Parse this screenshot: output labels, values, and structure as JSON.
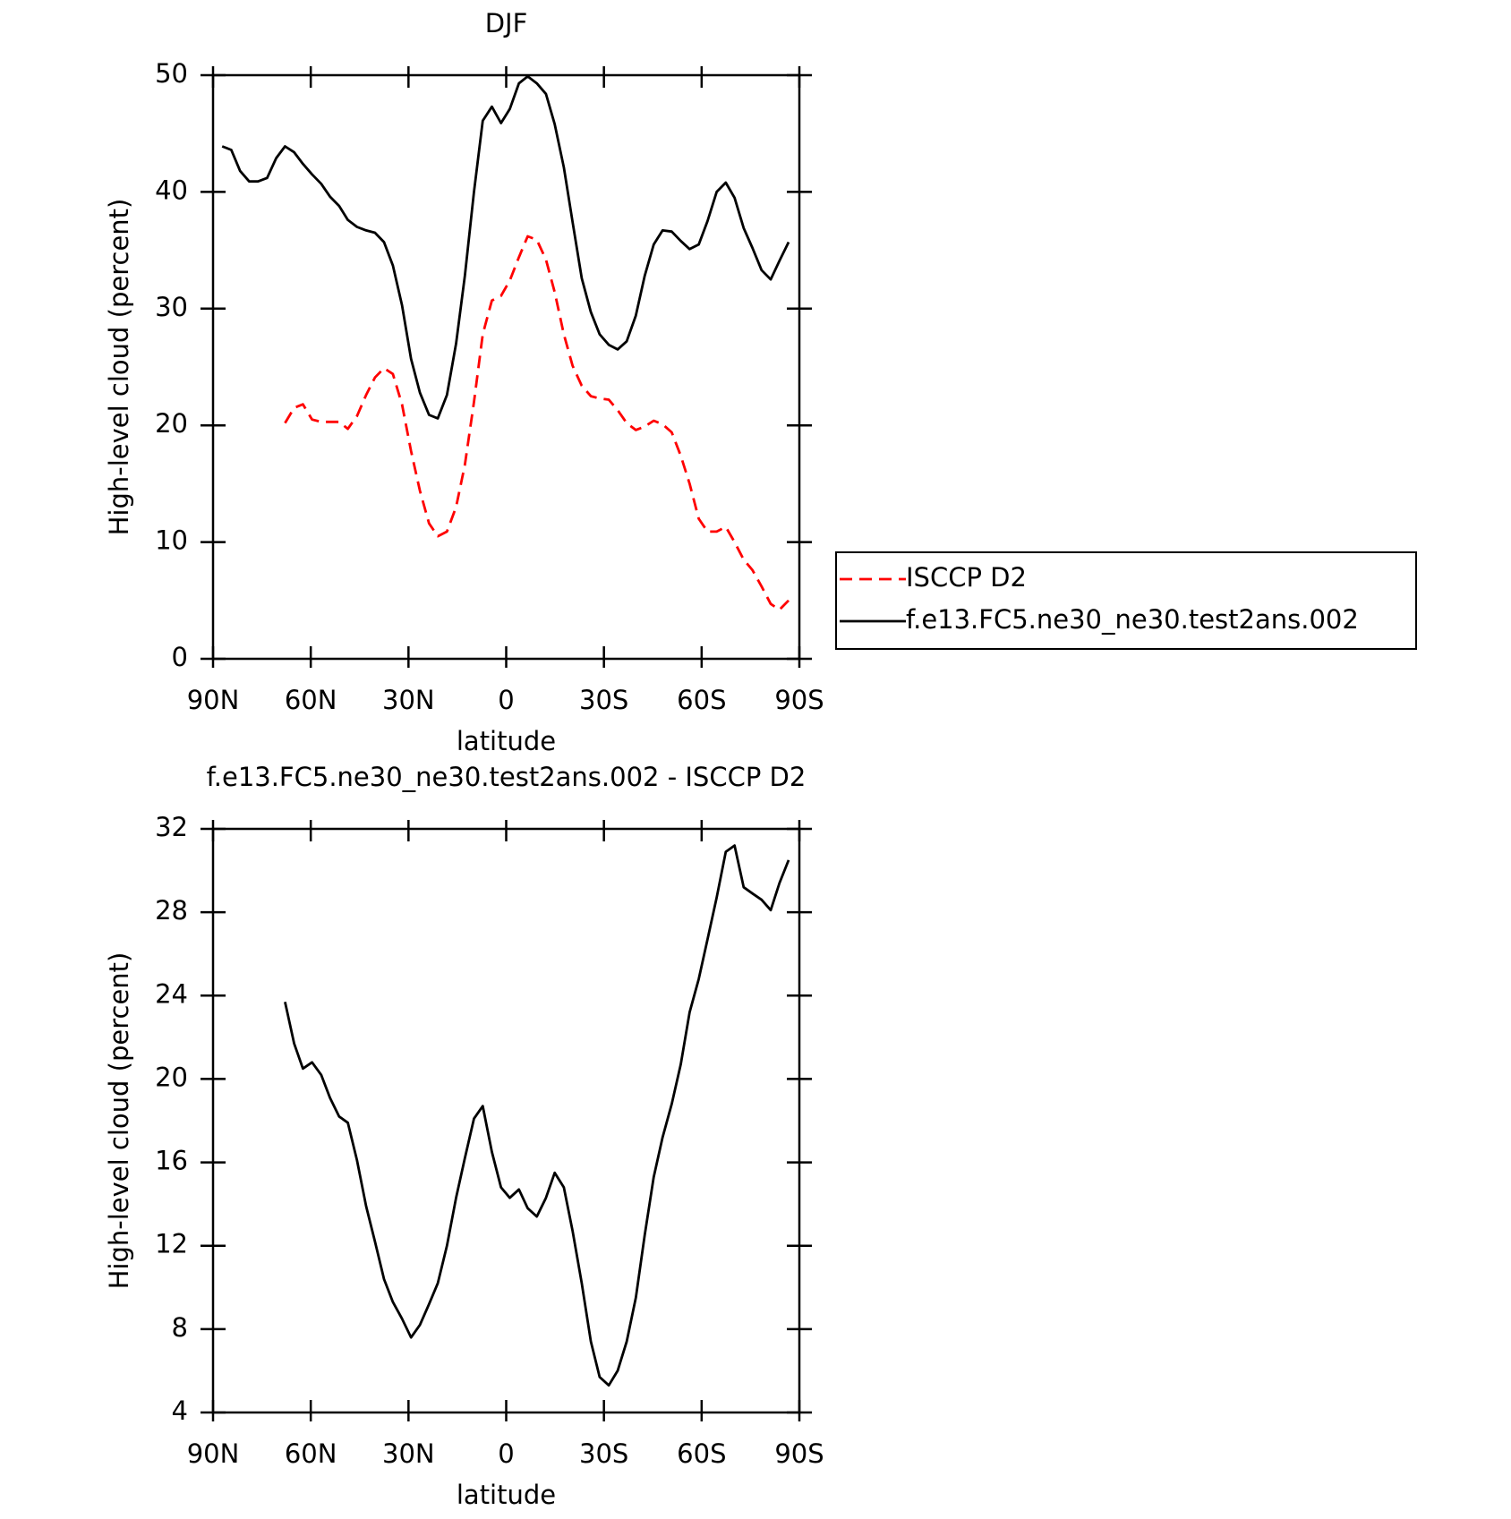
{
  "chart_data": [
    {
      "type": "line",
      "title": "DJF",
      "xlabel": "latitude",
      "ylabel": "High-level cloud (percent)",
      "xlim": [
        90,
        -90
      ],
      "ylim": [
        0,
        50
      ],
      "xticks": [
        {
          "value": 90,
          "label": "90N"
        },
        {
          "value": 60,
          "label": "60N"
        },
        {
          "value": 30,
          "label": "30N"
        },
        0,
        {
          "value": -30,
          "label": "30S"
        },
        {
          "value": -60,
          "label": "60S"
        },
        {
          "value": -90,
          "label": "90S"
        }
      ],
      "yticks": [
        0,
        10,
        20,
        30,
        40,
        50
      ],
      "legend": "right",
      "x": [
        87.2,
        84.4,
        81.7,
        78.9,
        76.2,
        73.4,
        70.6,
        67.9,
        65.1,
        62.4,
        59.6,
        56.8,
        54.1,
        51.3,
        48.6,
        45.8,
        43.0,
        40.3,
        37.5,
        34.8,
        32.0,
        29.2,
        26.5,
        23.7,
        21.0,
        18.2,
        15.4,
        12.7,
        9.9,
        7.2,
        4.4,
        1.6,
        -1.1,
        -3.9,
        -6.6,
        -9.4,
        -12.2,
        -14.9,
        -17.7,
        -20.4,
        -23.2,
        -26.0,
        -28.7,
        -31.5,
        -34.2,
        -37.0,
        -39.8,
        -42.5,
        -45.3,
        -48.0,
        -50.8,
        -53.6,
        -56.3,
        -59.1,
        -61.8,
        -64.6,
        -67.4,
        -70.1,
        -72.9,
        -75.6,
        -78.4,
        -81.2,
        -83.9,
        -86.7
      ],
      "series": [
        {
          "name": "ISCCP D2",
          "color": "#ff0000",
          "line_style": "dashed",
          "values": [
            null,
            null,
            null,
            null,
            null,
            null,
            null,
            20.2,
            21.5,
            21.8,
            20.5,
            20.3,
            20.3,
            20.3,
            19.7,
            20.8,
            22.6,
            24.1,
            24.9,
            24.4,
            21.8,
            17.8,
            14.4,
            11.6,
            10.5,
            10.9,
            13.0,
            16.6,
            22.0,
            27.8,
            30.7,
            31.1,
            32.4,
            34.4,
            36.2,
            35.9,
            34.2,
            31.4,
            27.8,
            25.1,
            23.4,
            22.5,
            22.3,
            22.2,
            21.3,
            20.2,
            19.6,
            19.9,
            20.4,
            20.1,
            19.4,
            17.4,
            15.0,
            12.0,
            10.9,
            10.9,
            11.3,
            10.0,
            8.5,
            7.6,
            6.2,
            4.7,
            4.2,
            5.0
          ]
        },
        {
          "name": "f.e13.FC5.ne30_ne30.test2ans.002",
          "color": "#000000",
          "line_style": "solid",
          "values": [
            43.9,
            43.6,
            41.8,
            40.9,
            40.9,
            41.2,
            42.9,
            43.9,
            43.4,
            42.4,
            41.5,
            40.7,
            39.6,
            38.8,
            37.6,
            37.0,
            36.7,
            36.5,
            35.7,
            33.7,
            30.3,
            25.7,
            22.8,
            20.9,
            20.6,
            22.6,
            27.0,
            32.8,
            40.0,
            46.1,
            47.3,
            45.9,
            47.1,
            49.3,
            49.9,
            49.3,
            48.4,
            45.8,
            42.1,
            37.4,
            32.6,
            29.7,
            27.8,
            26.9,
            26.5,
            27.2,
            29.4,
            32.8,
            35.5,
            36.7,
            36.6,
            35.8,
            35.1,
            35.5,
            37.5,
            40.0,
            40.8,
            39.5,
            36.9,
            35.2,
            33.3,
            32.5,
            34.1,
            35.7
          ]
        }
      ]
    },
    {
      "type": "line",
      "title": "f.e13.FC5.ne30_ne30.test2ans.002 - ISCCP D2",
      "xlabel": "latitude",
      "ylabel": "High-level cloud (percent)",
      "xlim": [
        90,
        -90
      ],
      "ylim": [
        4,
        32
      ],
      "xticks": [
        {
          "value": 90,
          "label": "90N"
        },
        {
          "value": 60,
          "label": "60N"
        },
        {
          "value": 30,
          "label": "30N"
        },
        0,
        {
          "value": -30,
          "label": "30S"
        },
        {
          "value": -60,
          "label": "60S"
        },
        {
          "value": -90,
          "label": "90S"
        }
      ],
      "yticks": [
        4,
        8,
        12,
        16,
        20,
        24,
        28,
        32
      ],
      "color": "#000000",
      "line_style": "solid",
      "x": [
        87.2,
        84.4,
        81.7,
        78.9,
        76.2,
        73.4,
        70.6,
        67.9,
        65.1,
        62.4,
        59.6,
        56.8,
        54.1,
        51.3,
        48.6,
        45.8,
        43.0,
        40.3,
        37.5,
        34.8,
        32.0,
        29.2,
        26.5,
        23.7,
        21.0,
        18.2,
        15.4,
        12.7,
        9.9,
        7.2,
        4.4,
        1.6,
        -1.1,
        -3.9,
        -6.6,
        -9.4,
        -12.2,
        -14.9,
        -17.7,
        -20.4,
        -23.2,
        -26.0,
        -28.7,
        -31.5,
        -34.2,
        -37.0,
        -39.8,
        -42.5,
        -45.3,
        -48.0,
        -50.8,
        -53.6,
        -56.3,
        -59.1,
        -61.8,
        -64.6,
        -67.4,
        -70.1,
        -72.9,
        -75.6,
        -78.4,
        -81.2,
        -83.9,
        -86.7
      ],
      "values": [
        null,
        null,
        null,
        null,
        null,
        null,
        null,
        23.7,
        21.7,
        20.5,
        20.8,
        20.2,
        19.1,
        18.2,
        17.9,
        16.1,
        13.9,
        12.2,
        10.4,
        9.3,
        8.5,
        7.6,
        8.2,
        9.2,
        10.2,
        12.0,
        14.3,
        16.2,
        18.1,
        18.7,
        16.5,
        14.8,
        14.3,
        14.7,
        13.8,
        13.4,
        14.3,
        15.5,
        14.8,
        12.7,
        10.2,
        7.4,
        5.7,
        5.3,
        6.0,
        7.4,
        9.5,
        12.5,
        15.3,
        17.2,
        18.8,
        20.7,
        23.2,
        24.8,
        26.7,
        28.7,
        30.9,
        31.2,
        29.2,
        28.9,
        28.6,
        28.1,
        29.4,
        30.5
      ]
    }
  ]
}
